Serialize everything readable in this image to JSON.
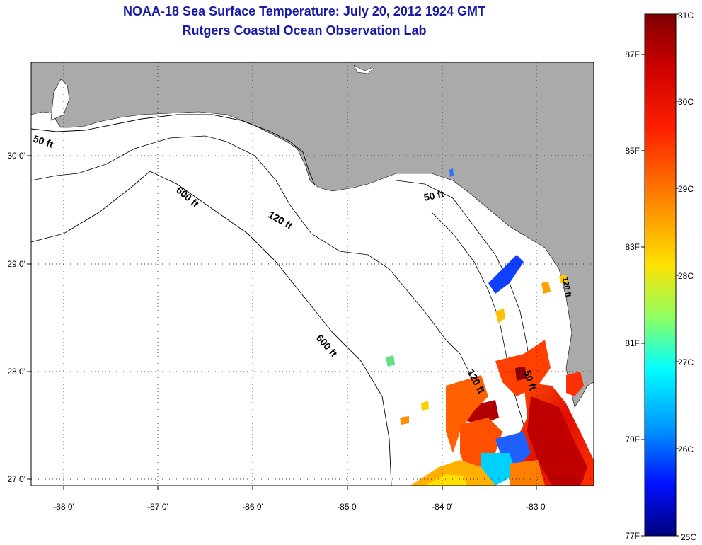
{
  "title": {
    "line1": "NOAA-18 Sea Surface Temperature:  July 20, 2012 1924 GMT",
    "line2": "Rutgers Coastal Ocean Observation Lab"
  },
  "map": {
    "lat_ticks": [
      "30 0'",
      "29 0'",
      "28 0'",
      "27 0'"
    ],
    "lon_ticks": [
      "-88 0'",
      "-87 0'",
      "-86 0'",
      "-85 0'",
      "-84 0'",
      "-83 0'"
    ],
    "contour_labels": [
      "50 ft",
      "50 ft",
      "120 ft",
      "600 ft",
      "600 ft",
      "120 ft",
      "50 ft",
      "120 ft"
    ],
    "colors": {
      "land": "#aaaaaa",
      "water": "#ffffff",
      "contour": "#000000"
    }
  },
  "colorbar": {
    "celsius": [
      "31C",
      "30C",
      "29C",
      "28C",
      "27C",
      "26C",
      "25C"
    ],
    "fahrenheit": [
      "87F",
      "85F",
      "83F",
      "81F",
      "79F",
      "77F"
    ],
    "range_c": [
      25,
      31
    ],
    "stops": [
      "#7f0000",
      "#ff0000",
      "#ff8000",
      "#ffff00",
      "#80ff80",
      "#00ffff",
      "#0080ff",
      "#0000ff",
      "#00007f"
    ]
  }
}
